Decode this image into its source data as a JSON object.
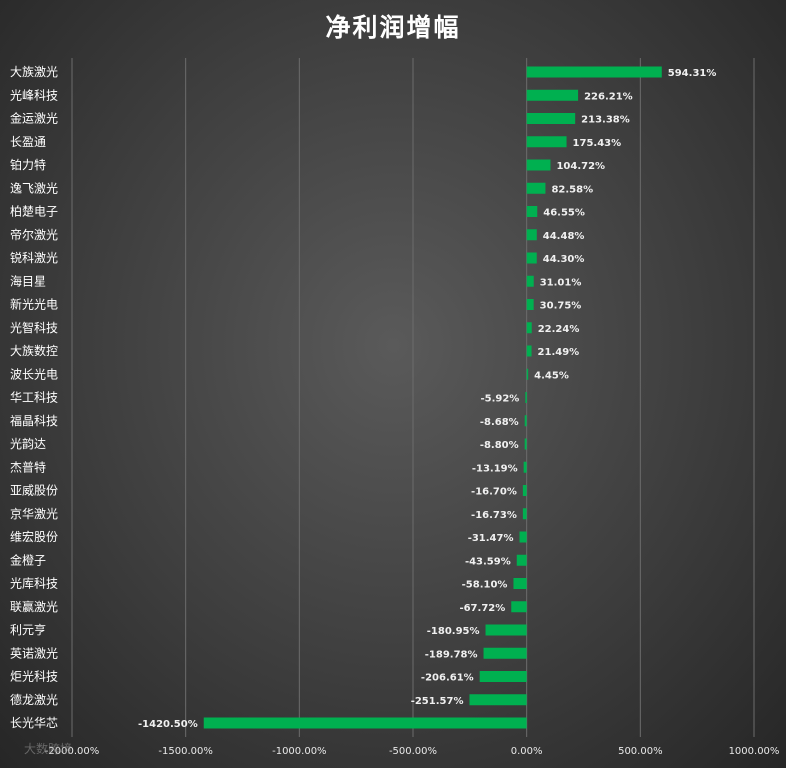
{
  "chart_data": {
    "type": "bar",
    "orientation": "horizontal",
    "title": "净利润增幅",
    "categories": [
      "大族激光",
      "光峰科技",
      "金运激光",
      "长盈通",
      "铂力特",
      "逸飞激光",
      "柏楚电子",
      "帝尔激光",
      "锐科激光",
      "海目星",
      "新光光电",
      "光智科技",
      "大族数控",
      "波长光电",
      "华工科技",
      "福晶科技",
      "光韵达",
      "杰普特",
      "亚威股份",
      "京华激光",
      "维宏股份",
      "金橙子",
      "光库科技",
      "联赢激光",
      "利元亨",
      "英诺激光",
      "炬光科技",
      "德龙激光",
      "长光华芯"
    ],
    "values": [
      594.31,
      226.21,
      213.38,
      175.43,
      104.72,
      82.58,
      46.55,
      44.48,
      44.3,
      31.01,
      30.75,
      22.24,
      21.49,
      4.45,
      -5.92,
      -8.68,
      -8.8,
      -13.19,
      -16.7,
      -16.73,
      -31.47,
      -43.59,
      -58.1,
      -67.72,
      -180.95,
      -189.78,
      -206.61,
      -251.57,
      -1420.5
    ],
    "value_labels": [
      "594.31%",
      "226.21%",
      "213.38%",
      "175.43%",
      "104.72%",
      "82.58%",
      "46.55%",
      "44.48%",
      "44.30%",
      "31.01%",
      "30.75%",
      "22.24%",
      "21.49%",
      "4.45%",
      "-5.92%",
      "-8.68%",
      "-8.80%",
      "-13.19%",
      "-16.70%",
      "-16.73%",
      "-31.47%",
      "-43.59%",
      "-58.10%",
      "-67.72%",
      "-180.95%",
      "-189.78%",
      "-206.61%",
      "-251.57%",
      "-1420.50%"
    ],
    "xlim": [
      -2000,
      1000
    ],
    "xticks": [
      -2000,
      -1500,
      -1000,
      -500,
      0,
      500,
      1000
    ],
    "xtick_labels": [
      "-2000.00%",
      "-1500.00%",
      "-1000.00%",
      "-500.00%",
      "0.00%",
      "500.00%",
      "1000.00%"
    ],
    "grid": true,
    "bar_color": "#00b050"
  },
  "watermark": "大数跨境"
}
